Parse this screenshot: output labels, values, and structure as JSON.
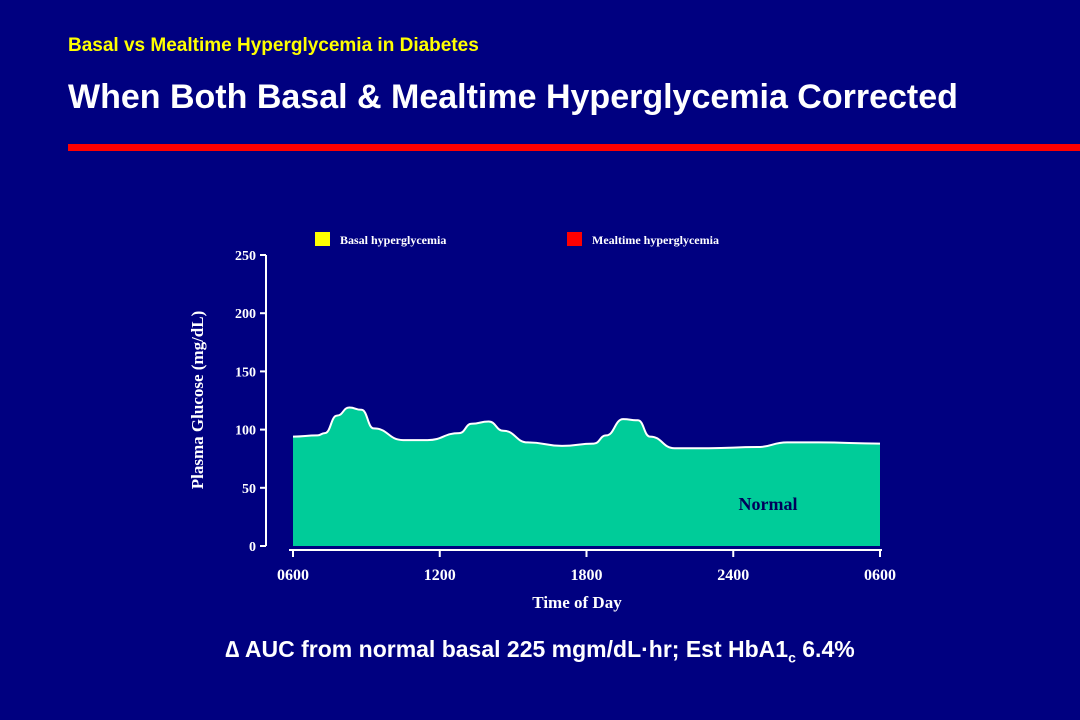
{
  "header": {
    "subtitle": "Basal vs Mealtime Hyperglycemia in Diabetes",
    "title": "When Both Basal & Mealtime Hyperglycemia Corrected"
  },
  "colors": {
    "background": "#000080",
    "accent_rule": "#FF0000",
    "normal_area": "#00CC99",
    "basal": "#FFFF00",
    "mealtime": "#FF0000",
    "text": "#FFFFFF"
  },
  "chart_data": {
    "type": "area",
    "title": "",
    "xlabel": "Time of Day",
    "ylabel": "Plasma Glucose (mg/dL)",
    "x_tick_labels": [
      "0600",
      "1200",
      "1800",
      "2400",
      "0600"
    ],
    "y_tick_labels": [
      "0",
      "50",
      "100",
      "150",
      "200",
      "250"
    ],
    "ylim": [
      0,
      250
    ],
    "xlim_hours": [
      6,
      30
    ],
    "legend": {
      "placement": "top",
      "items": [
        {
          "label": "Basal hyperglycemia",
          "color": "#FFFF00"
        },
        {
          "label": "Mealtime hyperglycemia",
          "color": "#FF0000"
        }
      ]
    },
    "area_label": "Normal",
    "series": [
      {
        "name": "Normal",
        "x_hours": [
          6.0,
          7.0,
          7.3,
          7.8,
          8.3,
          8.8,
          9.3,
          10.5,
          11.5,
          12.8,
          13.3,
          14.0,
          14.6,
          15.6,
          17.0,
          18.3,
          18.8,
          19.5,
          20.1,
          20.6,
          21.6,
          23.0,
          25.0,
          26.2,
          27.5,
          30.0
        ],
        "values": [
          94,
          95,
          97,
          112,
          119,
          117,
          101,
          91,
          91,
          97,
          105,
          107,
          99,
          89,
          86,
          88,
          95,
          109,
          108,
          94,
          84,
          84,
          85,
          89,
          89,
          88
        ]
      }
    ],
    "grid": false
  },
  "footnote": {
    "delta": "∆",
    "text_main": "AUC from normal basal 225 mgm/dL·hr; Est HbA1",
    "sub": "c",
    "text_end": "6.4%"
  }
}
